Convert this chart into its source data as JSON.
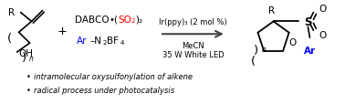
{
  "bg_color": "#ffffff",
  "fig_width": 3.78,
  "fig_height": 1.15,
  "dpi": 100,
  "bullet1": "intramolecular oxysulfonylation of alkene",
  "bullet2": "radical process under photocatalysis",
  "catalyst": "Ir(ppy)₃ (2 mol %)",
  "solvent": "MeCN",
  "light": "35 W White LED",
  "plus": "+"
}
